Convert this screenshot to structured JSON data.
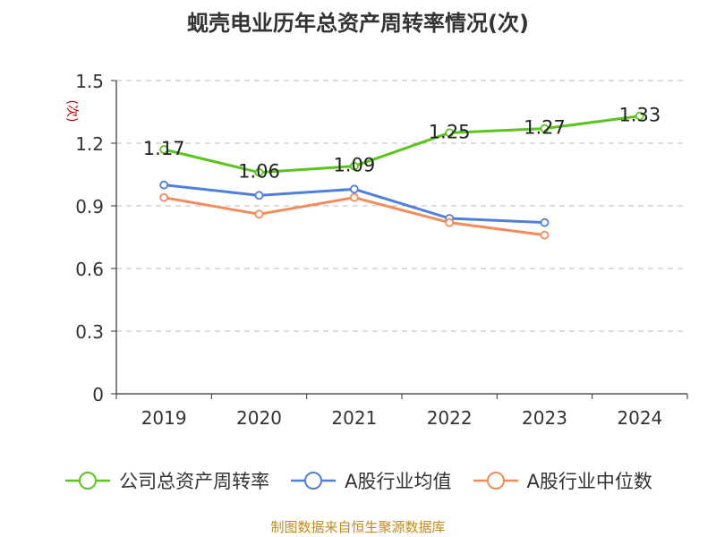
{
  "source_text": "制图数据来自恒生聚源数据库",
  "chart_data": {
    "type": "line",
    "title": "蚬壳电业历年总资产周转率情况(次)",
    "ylabel": "(次)",
    "xlabel": "",
    "categories": [
      "2019",
      "2020",
      "2021",
      "2022",
      "2023",
      "2024"
    ],
    "ylim": [
      0,
      1.5
    ],
    "yticks": [
      "0",
      "0.3",
      "0.6",
      "0.9",
      "1.2",
      "1.5"
    ],
    "ytick_values": [
      0,
      0.3,
      0.6,
      0.9,
      1.2,
      1.5
    ],
    "grid": true,
    "legend_position": "bottom",
    "series": [
      {
        "name": "公司总资产周转率",
        "color": "#5cc41e",
        "values": [
          1.17,
          1.06,
          1.09,
          1.25,
          1.27,
          1.33
        ],
        "labels": [
          "1.17",
          "1.06",
          "1.09",
          "1.25",
          "1.27",
          "1.33"
        ],
        "show_labels": true
      },
      {
        "name": "A股行业均值",
        "color": "#4f7fdb",
        "values": [
          1.0,
          0.95,
          0.98,
          0.84,
          0.82,
          null
        ],
        "show_labels": false
      },
      {
        "name": "A股行业中位数",
        "color": "#f58a5a",
        "values": [
          0.94,
          0.86,
          0.94,
          0.82,
          0.76,
          null
        ],
        "show_labels": false
      }
    ]
  }
}
